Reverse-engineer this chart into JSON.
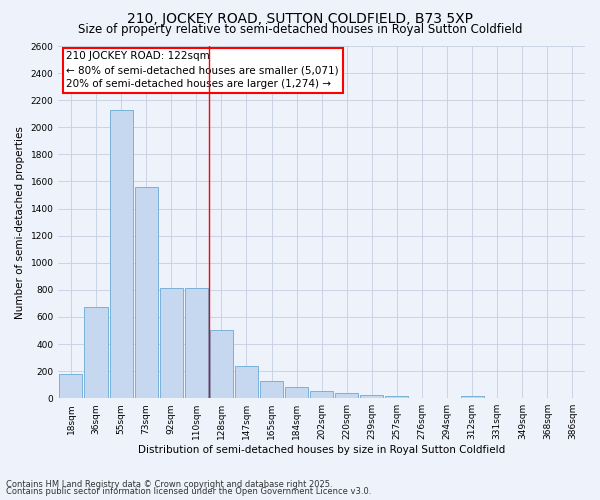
{
  "title": "210, JOCKEY ROAD, SUTTON COLDFIELD, B73 5XP",
  "subtitle": "Size of property relative to semi-detached houses in Royal Sutton Coldfield",
  "xlabel": "Distribution of semi-detached houses by size in Royal Sutton Coldfield",
  "ylabel": "Number of semi-detached properties",
  "categories": [
    "18sqm",
    "36sqm",
    "55sqm",
    "73sqm",
    "92sqm",
    "110sqm",
    "128sqm",
    "147sqm",
    "165sqm",
    "184sqm",
    "202sqm",
    "220sqm",
    "239sqm",
    "257sqm",
    "276sqm",
    "294sqm",
    "312sqm",
    "331sqm",
    "349sqm",
    "368sqm",
    "386sqm"
  ],
  "values": [
    180,
    670,
    2130,
    1560,
    810,
    810,
    500,
    240,
    130,
    80,
    55,
    35,
    20,
    15,
    0,
    0,
    15,
    0,
    0,
    0,
    0
  ],
  "bar_color": "#c5d8f0",
  "bar_edge_color": "#6aaad4",
  "red_line_x": 5.5,
  "property_label": "210 JOCKEY ROAD: 122sqm",
  "annotation_line1": "← 80% of semi-detached houses are smaller (5,071)",
  "annotation_line2": "20% of semi-detached houses are larger (1,274) →",
  "ylim": [
    0,
    2600
  ],
  "yticks": [
    0,
    200,
    400,
    600,
    800,
    1000,
    1200,
    1400,
    1600,
    1800,
    2000,
    2200,
    2400,
    2600
  ],
  "footnote1": "Contains HM Land Registry data © Crown copyright and database right 2025.",
  "footnote2": "Contains public sector information licensed under the Open Government Licence v3.0.",
  "background_color": "#eef2fa",
  "grid_color": "#c5cfe0",
  "title_fontsize": 10,
  "subtitle_fontsize": 8.5,
  "axis_label_fontsize": 7.5,
  "tick_fontsize": 6.5,
  "annotation_fontsize": 7.5,
  "footnote_fontsize": 6
}
